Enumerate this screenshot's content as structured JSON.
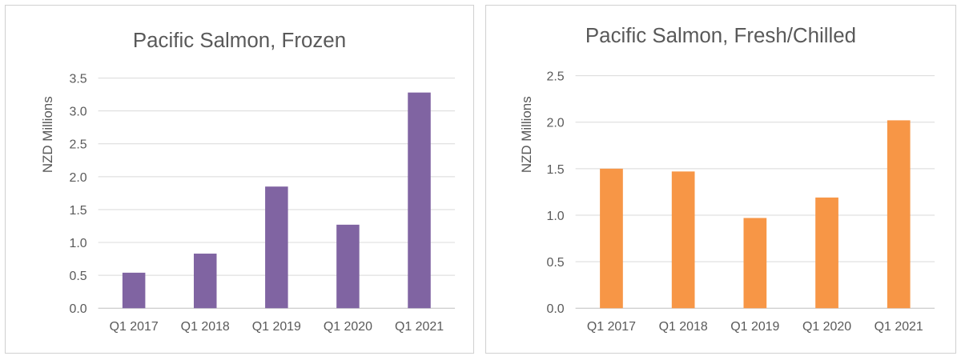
{
  "chart_data": [
    {
      "type": "bar",
      "title": "Pacific Salmon, Frozen",
      "xlabel": "",
      "ylabel": "NZD Millions",
      "categories": [
        "Q1 2017",
        "Q1 2018",
        "Q1 2019",
        "Q1 2020",
        "Q1 2021"
      ],
      "values": [
        0.54,
        0.83,
        1.85,
        1.27,
        3.28
      ],
      "ylim": [
        0,
        3.5
      ],
      "yticks": [
        "0.0",
        "0.5",
        "1.0",
        "1.5",
        "2.0",
        "2.5",
        "3.0",
        "3.5"
      ],
      "bar_color": "#8064a2",
      "grid": true,
      "legend": "none"
    },
    {
      "type": "bar",
      "title": "Pacific Salmon, Fresh/Chilled",
      "xlabel": "",
      "ylabel": "NZD Millions",
      "categories": [
        "Q1 2017",
        "Q1 2018",
        "Q1 2019",
        "Q1 2020",
        "Q1 2021"
      ],
      "values": [
        1.5,
        1.47,
        0.97,
        1.19,
        2.02
      ],
      "ylim": [
        0,
        2.5
      ],
      "yticks": [
        "0.0",
        "0.5",
        "1.0",
        "1.5",
        "2.0",
        "2.5"
      ],
      "bar_color": "#f79646",
      "grid": true,
      "legend": "none"
    }
  ]
}
